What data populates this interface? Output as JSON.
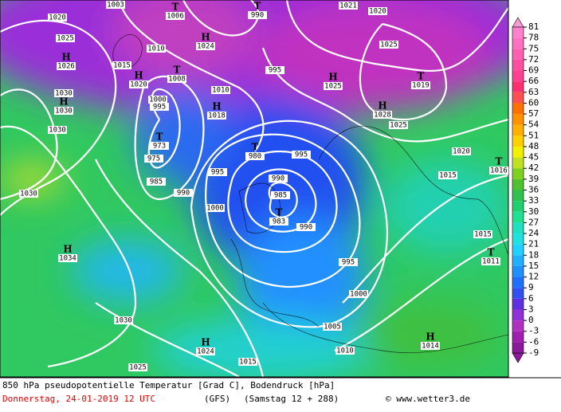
{
  "map": {
    "legend": {
      "levels": [
        81,
        78,
        75,
        72,
        69,
        66,
        63,
        60,
        57,
        54,
        51,
        48,
        45,
        42,
        39,
        36,
        33,
        30,
        27,
        24,
        21,
        18,
        15,
        12,
        9,
        6,
        3,
        0,
        -3,
        -6,
        -9
      ],
      "colors": [
        "#ff9ad8",
        "#ff80cc",
        "#ff70c0",
        "#ff60b0",
        "#ff50a0",
        "#ff4090",
        "#ff3070",
        "#ff5050",
        "#ff7000",
        "#ff9000",
        "#ffb000",
        "#ffd000",
        "#f0f000",
        "#c0e020",
        "#80d020",
        "#50c030",
        "#30c050",
        "#20d070",
        "#20e090",
        "#20e0c0",
        "#20e0e0",
        "#20d0ff",
        "#20b0ff",
        "#2090ff",
        "#2070ff",
        "#3050f0",
        "#6030e0",
        "#9030d8",
        "#b030c0",
        "#a020b0",
        "#8b1a9b"
      ]
    },
    "centers": [
      {
        "symbol": "H",
        "value": "1026"
      },
      {
        "symbol": "H",
        "value": "1030"
      },
      {
        "symbol": "T",
        "value": "973"
      },
      {
        "symbol": "H",
        "value": "1018"
      },
      {
        "symbol": "H",
        "value": "1024"
      },
      {
        "symbol": "T",
        "value": "1006"
      },
      {
        "symbol": "T",
        "value": "990"
      },
      {
        "symbol": "T",
        "value": "1008"
      },
      {
        "symbol": "H",
        "value": "1020"
      },
      {
        "symbol": "T",
        "value": "983"
      },
      {
        "symbol": "T",
        "value": "980"
      },
      {
        "symbol": "H",
        "value": "1025"
      },
      {
        "symbol": "T",
        "value": "1019"
      },
      {
        "symbol": "H",
        "value": "1028"
      },
      {
        "symbol": "T",
        "value": "1016"
      },
      {
        "symbol": "T",
        "value": "1011"
      },
      {
        "symbol": "H",
        "value": "1034"
      },
      {
        "symbol": "H",
        "value": "1024"
      },
      {
        "symbol": "H",
        "value": "1014"
      }
    ],
    "isobar_labels": [
      "1020",
      "1025",
      "1003",
      "1015",
      "1010",
      "1030",
      "1030",
      "975",
      "985",
      "990",
      "995",
      "1000",
      "995",
      "1010",
      "995",
      "990",
      "985",
      "990",
      "995",
      "1000",
      "1005",
      "1010",
      "1015",
      "1015",
      "1020",
      "1025",
      "1025",
      "1020",
      "1021",
      "1030",
      "1030",
      "1025",
      "1015",
      "1000",
      "995"
    ],
    "footer": {
      "description": "850 hPa pseudopotentielle Temperatur [Grad C], Bodendruck [hPa]",
      "date": "Donnerstag, 24-01-2019  12 UTC",
      "model": "(GFS)",
      "forecast": "(Samstag 12 + 288)",
      "credit": "© www.wetter3.de"
    }
  }
}
